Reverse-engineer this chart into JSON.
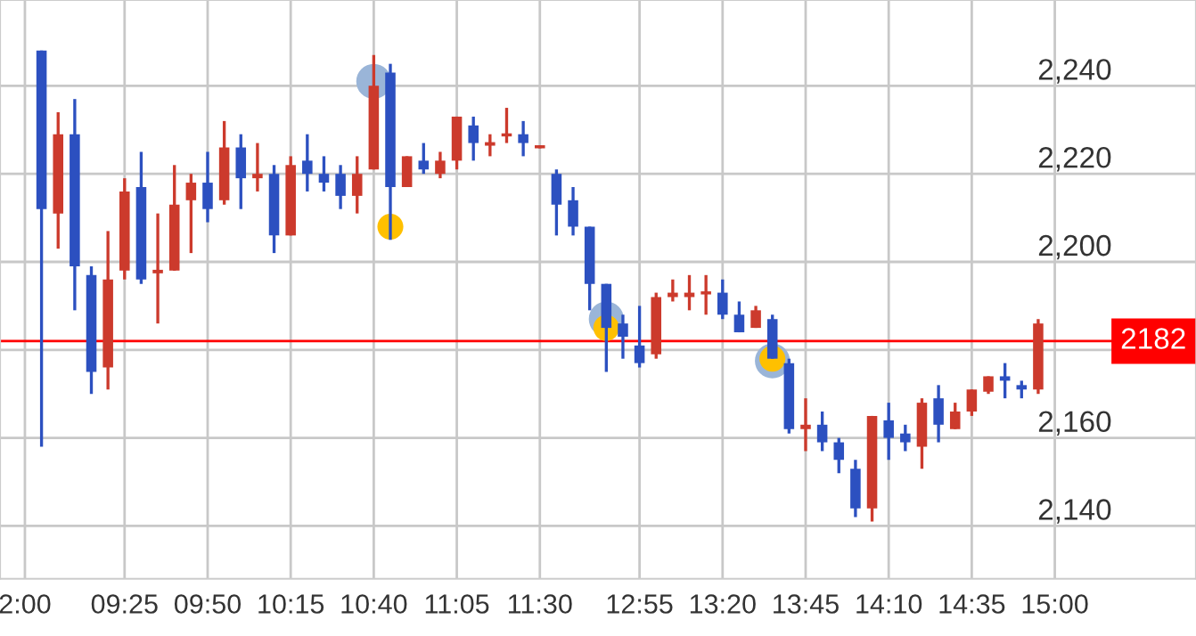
{
  "chart_data": {
    "type": "candlestick",
    "categories": [
      "2:00",
      null,
      null,
      null,
      null,
      null,
      "09:25",
      null,
      null,
      null,
      null,
      "09:50",
      null,
      null,
      null,
      null,
      "10:15",
      null,
      null,
      null,
      null,
      "10:40",
      null,
      null,
      null,
      null,
      "11:05",
      null,
      null,
      null,
      null,
      "11:30",
      null,
      null,
      null,
      null,
      null,
      "12:55",
      null,
      null,
      null,
      null,
      "13:20",
      null,
      null,
      null,
      null,
      "13:45",
      null,
      null,
      null,
      null,
      "14:10",
      null,
      null,
      null,
      null,
      "14:35",
      null,
      null,
      null,
      null,
      "15:00",
      null,
      null,
      null,
      null,
      null,
      null,
      null,
      null
    ],
    "ohlc": [
      null,
      [
        2248,
        2248,
        2158,
        2212
      ],
      [
        2211,
        2234,
        2203,
        2229
      ],
      [
        2229,
        2237,
        2189,
        2199
      ],
      [
        2197,
        2199,
        2170,
        2175
      ],
      [
        2176,
        2207,
        2171,
        2196
      ],
      [
        2198,
        2219,
        2196,
        2216
      ],
      [
        2217,
        2225,
        2195,
        2196
      ],
      [
        2197.4,
        2211,
        2186,
        2198.2
      ],
      [
        2198,
        2222,
        2198,
        2213
      ],
      [
        2214,
        2220,
        2202,
        2218
      ],
      [
        2218,
        2225,
        2209,
        2212
      ],
      [
        2214,
        2232,
        2213,
        2226
      ],
      [
        2226,
        2229,
        2212,
        2219
      ],
      [
        2219,
        2227,
        2216,
        2220
      ],
      [
        2220,
        2222,
        2202,
        2206
      ],
      [
        2206,
        2224,
        2206,
        2222
      ],
      [
        2223,
        2229,
        2216,
        2220
      ],
      [
        2220,
        2224,
        2216,
        2218
      ],
      [
        2220,
        2222,
        2212,
        2215
      ],
      [
        2215,
        2224,
        2211,
        2220
      ],
      [
        2221,
        2247,
        2221,
        2240
      ],
      [
        2243,
        2245,
        2205,
        2217
      ],
      [
        2217,
        2224,
        2217,
        2224
      ],
      [
        2223,
        2227,
        2220,
        2221
      ],
      [
        2220,
        2225,
        2219,
        2223
      ],
      [
        2223,
        2233,
        2221,
        2233
      ],
      [
        2231,
        2233,
        2223,
        2227
      ],
      [
        2226.4,
        2229,
        2224,
        2227.2
      ],
      [
        2228.5,
        2235,
        2227,
        2229.2
      ],
      [
        2229,
        2232,
        2224,
        2227
      ],
      [
        2225.8,
        2226.5,
        2225.8,
        2226.5
      ],
      [
        2220,
        2221,
        2206,
        2213
      ],
      [
        2214,
        2217,
        2206,
        2208
      ],
      [
        2208,
        2208,
        2189,
        2195
      ],
      [
        2195,
        2195,
        2175,
        2185
      ],
      [
        2186,
        2188,
        2178,
        2183
      ],
      [
        2181,
        2190,
        2176,
        2177
      ],
      [
        2179,
        2193,
        2178,
        2192
      ],
      [
        2192,
        2196,
        2191,
        2193
      ],
      [
        2192,
        2197,
        2189,
        2193
      ],
      [
        2192.6,
        2197,
        2188,
        2193.3
      ],
      [
        2193,
        2196,
        2187,
        2188
      ],
      [
        2188,
        2191,
        2184,
        2184
      ],
      [
        2185,
        2190,
        2185,
        2189
      ],
      [
        2187,
        2188,
        2178,
        2178
      ],
      [
        2177,
        2178,
        2161,
        2162
      ],
      [
        2162,
        2169,
        2157,
        2163
      ],
      [
        2163,
        2166,
        2157,
        2159
      ],
      [
        2159,
        2160,
        2152,
        2155
      ],
      [
        2153,
        2155,
        2142,
        2144
      ],
      [
        2144,
        2165,
        2141,
        2165
      ],
      [
        2164,
        2168,
        2155,
        2160
      ],
      [
        2161,
        2163,
        2157,
        2159
      ],
      [
        2158,
        2169,
        2153,
        2168
      ],
      [
        2169,
        2172,
        2159,
        2163
      ],
      [
        2162,
        2168,
        2162,
        2166
      ],
      [
        2166,
        2171,
        2165,
        2171
      ],
      [
        2170.5,
        2174,
        2170,
        2174
      ],
      [
        2174,
        2177,
        2169,
        2173
      ],
      [
        2172,
        2173,
        2169,
        2171
      ],
      [
        2171,
        2187,
        2170,
        2186
      ],
      null,
      null,
      null,
      null,
      null,
      null,
      null,
      null,
      null
    ],
    "colors": [
      null,
      "#2c50c0",
      "#cc3a2c",
      "#2c50c0",
      "#2c50c0",
      "#cc3a2c",
      "#cc3a2c",
      "#2c50c0",
      "#cc3a2c",
      "#cc3a2c",
      "#cc3a2c",
      "#2c50c0",
      "#cc3a2c",
      "#2c50c0",
      "#cc3a2c",
      "#2c50c0",
      "#cc3a2c",
      "#2c50c0",
      "#2c50c0",
      "#2c50c0",
      "#cc3a2c",
      "#cc3a2c",
      "#2c50c0",
      "#cc3a2c",
      "#2c50c0",
      "#cc3a2c",
      "#cc3a2c",
      "#2c50c0",
      "#cc3a2c",
      "#cc3a2c",
      "#2c50c0",
      "#cc3a2c",
      "#2c50c0",
      "#2c50c0",
      "#2c50c0",
      "#2c50c0",
      "#2c50c0",
      "#2c50c0",
      "#cc3a2c",
      "#cc3a2c",
      "#cc3a2c",
      "#cc3a2c",
      "#2c50c0",
      "#2c50c0",
      "#cc3a2c",
      "#2c50c0",
      "#2c50c0",
      "#cc3a2c",
      "#2c50c0",
      "#2c50c0",
      "#2c50c0",
      "#cc3a2c",
      "#2c50c0",
      "#2c50c0",
      "#cc3a2c",
      "#2c50c0",
      "#cc3a2c",
      "#cc3a2c",
      "#cc3a2c",
      "#2c50c0",
      "#2c50c0",
      "#cc3a2c",
      null,
      null,
      null,
      null,
      null,
      null,
      null,
      null,
      null
    ],
    "series": [
      {
        "type": "scatter",
        "color": "#9ab5d8",
        "values": [
          null,
          null,
          null,
          null,
          null,
          null,
          null,
          null,
          null,
          null,
          null,
          null,
          null,
          null,
          null,
          null,
          null,
          null,
          null,
          null,
          null,
          2241,
          null,
          null,
          null,
          null,
          null,
          null,
          null,
          null,
          null,
          null,
          null,
          null,
          null,
          2187,
          null,
          null,
          null,
          null,
          null,
          null,
          null,
          null,
          null,
          2177.5,
          null,
          null,
          null,
          null,
          null,
          null,
          null,
          null,
          null,
          null,
          null,
          null,
          null,
          null,
          null,
          null,
          null,
          null,
          null,
          null,
          null,
          null,
          null,
          null,
          null
        ]
      },
      {
        "type": "scatter",
        "color": "#ffc000",
        "values": [
          null,
          null,
          null,
          null,
          null,
          null,
          null,
          null,
          null,
          null,
          null,
          null,
          null,
          null,
          null,
          null,
          null,
          null,
          null,
          null,
          null,
          null,
          2208,
          null,
          null,
          null,
          null,
          null,
          null,
          null,
          null,
          null,
          null,
          null,
          null,
          2185,
          null,
          null,
          null,
          null,
          null,
          null,
          null,
          null,
          null,
          2178,
          null,
          null,
          null,
          null,
          null,
          null,
          null,
          null,
          null,
          null,
          null,
          null,
          null,
          null,
          null,
          null,
          null,
          null,
          null,
          null,
          null,
          null,
          null,
          null,
          null
        ]
      }
    ],
    "marker": "circle",
    "ylim": [
      2128,
      2259.5
    ],
    "yticks": [
      {
        "value": 2140,
        "label": "2,140"
      },
      {
        "value": 2160,
        "label": "2,160"
      },
      {
        "value": 2180,
        "label": null
      },
      {
        "value": 2200,
        "label": "2,200"
      },
      {
        "value": 2220,
        "label": "2,220"
      },
      {
        "value": 2240,
        "label": "2,240"
      }
    ],
    "grid": true,
    "ref_lines": [
      {
        "axis": "y",
        "value": 2182,
        "label": "2182",
        "color": "#ff0000"
      }
    ]
  }
}
